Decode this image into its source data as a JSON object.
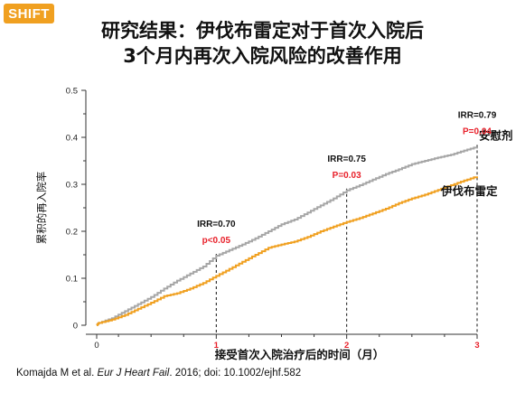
{
  "logo": {
    "text": "SHIFT"
  },
  "title": {
    "line1": "研究结果：伊伐布雷定对于首次入院后",
    "line2": "3个月内再次入院风险的改善作用"
  },
  "citation": {
    "authors": "Komajda M et al. ",
    "journal": "Eur J Heart Fail",
    "rest": ". 2016; doi: 10.1002/ejhf.582"
  },
  "colors": {
    "placebo": "#a6a6a6",
    "ivabradine": "#f0a020",
    "highlight": "#e8202a",
    "axis": "#333333"
  },
  "chart_data": {
    "type": "line",
    "xlabel": "接受首次入院治疗后的时间（月）",
    "ylabel": "累积的再入院率",
    "xlim": [
      0,
      3
    ],
    "ylim": [
      0,
      0.5
    ],
    "x_ticks": [
      "0",
      "1",
      "2",
      "3"
    ],
    "y_ticks": [
      "0",
      "0.1",
      "0.2",
      "0.3",
      "0.4",
      "0.5"
    ],
    "series": [
      {
        "name": "安慰剂",
        "x": [
          0,
          0.1,
          0.2,
          0.3,
          0.4,
          0.5,
          0.6,
          0.7,
          0.8,
          0.9,
          1.0,
          1.1,
          1.2,
          1.3,
          1.4,
          1.5,
          1.6,
          1.7,
          1.8,
          1.9,
          2.0,
          2.1,
          2.2,
          2.3,
          2.4,
          2.5,
          2.6,
          2.7,
          2.8,
          2.9,
          3.0
        ],
        "y": [
          0,
          0.005,
          0.015,
          0.03,
          0.045,
          0.06,
          0.078,
          0.095,
          0.11,
          0.125,
          0.148,
          0.16,
          0.172,
          0.185,
          0.2,
          0.215,
          0.225,
          0.24,
          0.255,
          0.27,
          0.287,
          0.298,
          0.31,
          0.322,
          0.332,
          0.343,
          0.35,
          0.357,
          0.363,
          0.372,
          0.38
        ]
      },
      {
        "name": "伊伐布雷定",
        "x": [
          0,
          0.1,
          0.2,
          0.3,
          0.4,
          0.5,
          0.6,
          0.7,
          0.8,
          0.9,
          1.0,
          1.1,
          1.2,
          1.3,
          1.4,
          1.5,
          1.6,
          1.7,
          1.8,
          1.9,
          2.0,
          2.1,
          2.2,
          2.3,
          2.4,
          2.5,
          2.6,
          2.7,
          2.8,
          2.9,
          3.0
        ],
        "y": [
          0,
          0.005,
          0.012,
          0.022,
          0.035,
          0.048,
          0.062,
          0.068,
          0.078,
          0.09,
          0.105,
          0.12,
          0.135,
          0.15,
          0.165,
          0.172,
          0.178,
          0.188,
          0.2,
          0.21,
          0.22,
          0.228,
          0.238,
          0.248,
          0.26,
          0.27,
          0.278,
          0.288,
          0.298,
          0.308,
          0.317
        ]
      }
    ],
    "annotations": [
      {
        "x": 1,
        "irr": "IRR=0.70",
        "p": "p<0.05"
      },
      {
        "x": 2,
        "irr": "IRR=0.75",
        "p": "P=0.03"
      },
      {
        "x": 3,
        "irr": "IRR=0.79",
        "p": "P=0.04"
      }
    ],
    "grid": false
  }
}
